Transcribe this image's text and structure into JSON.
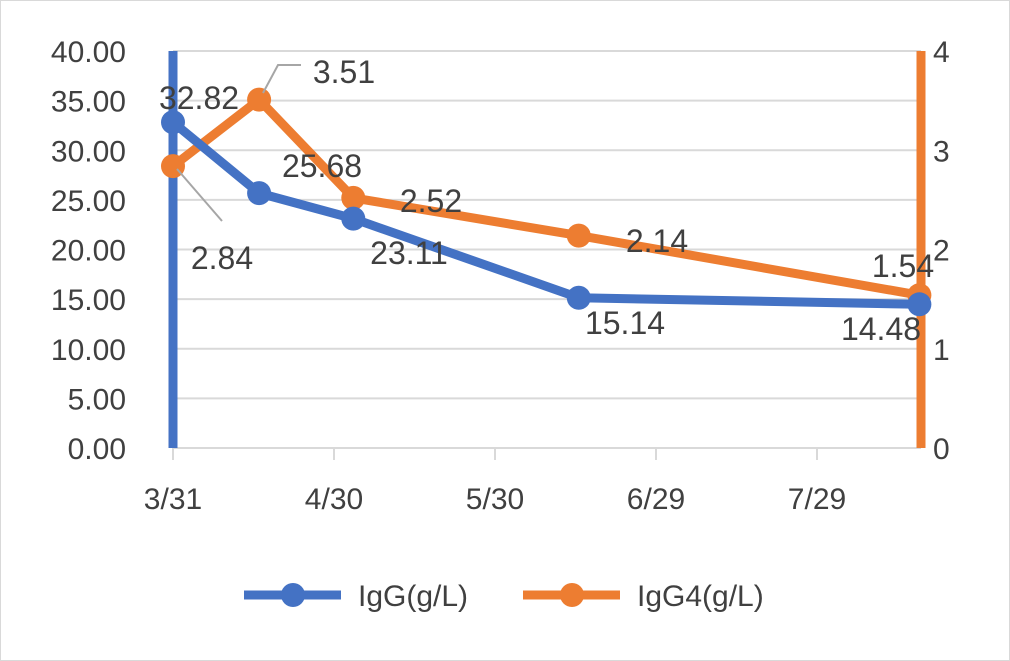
{
  "chart_data": {
    "type": "line",
    "title": "",
    "xlabel": "",
    "ylabel": "",
    "x_tick_labels": [
      "3/31",
      "4/30",
      "5/30",
      "6/29",
      "7/29"
    ],
    "x_day_offsets": [
      0,
      16,
      33.5,
      75.4,
      138.7
    ],
    "x_range_days": [
      0,
      139
    ],
    "y_left": {
      "ticks": [
        "0.00",
        "5.00",
        "10.00",
        "15.00",
        "20.00",
        "25.00",
        "30.00",
        "35.00",
        "40.00"
      ],
      "range": [
        0,
        40
      ]
    },
    "y_right": {
      "ticks": [
        "0",
        "1",
        "2",
        "3",
        "4"
      ],
      "range": [
        0,
        4
      ]
    },
    "grid": true,
    "legend_position": "bottom",
    "series": [
      {
        "name": "IgG(g/L)",
        "axis": "left",
        "color": "#4472C4",
        "values": [
          32.82,
          25.68,
          23.11,
          15.14,
          14.48
        ],
        "labels": [
          "32.82",
          "25.68",
          "23.11",
          "15.14",
          "14.48"
        ]
      },
      {
        "name": "IgG4(g/L)",
        "axis": "right",
        "color": "#ED7D31",
        "values": [
          2.84,
          3.51,
          2.52,
          2.14,
          1.54
        ],
        "labels": [
          "2.84",
          "3.51",
          "2.52",
          "2.14",
          "1.54"
        ]
      }
    ]
  }
}
